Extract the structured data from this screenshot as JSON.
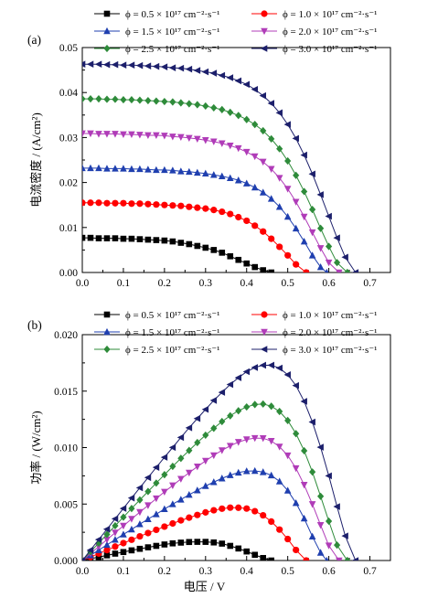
{
  "figure": {
    "panels": [
      {
        "label": "(a)",
        "ylabel": "电流密度 / (A/cm²)",
        "xlabel": "",
        "xlim": [
          0,
          0.75
        ],
        "ylim": [
          0,
          0.05
        ],
        "xticks": [
          "0.0",
          "0.1",
          "0.2",
          "0.3",
          "0.4",
          "0.5",
          "0.6",
          "0.7"
        ],
        "yticks": [
          "0.00",
          "0.01",
          "0.02",
          "0.03",
          "0.04",
          "0.05"
        ]
      },
      {
        "label": "(b)",
        "ylabel": "功率 / (W/cm²)",
        "xlabel": "电压 / V",
        "xlim": [
          0,
          0.75
        ],
        "ylim": [
          0,
          0.02
        ],
        "xticks": [
          "0.0",
          "0.1",
          "0.2",
          "0.3",
          "0.4",
          "0.5",
          "0.6",
          "0.7"
        ],
        "yticks": [
          "0.000",
          "0.005",
          "0.010",
          "0.015",
          "0.020"
        ]
      }
    ],
    "legend_labels": [
      "ϕ = 0.5 × 10¹⁷ cm⁻²·s⁻¹",
      "ϕ = 1.0 × 10¹⁷ cm⁻²·s⁻¹",
      "ϕ = 1.5 × 10¹⁷ cm⁻²·s⁻¹",
      "ϕ = 2.0 × 10¹⁷ cm⁻²·s⁻¹",
      "ϕ = 2.5 × 10¹⁷ cm⁻²·s⁻¹",
      "ϕ = 3.0 × 10¹⁷ cm⁻²·s⁻¹"
    ]
  },
  "chart_data": [
    {
      "type": "line",
      "title": "",
      "xlabel": "",
      "ylabel": "电流密度 / (A/cm²)",
      "xlim": [
        0,
        0.75
      ],
      "ylim": [
        0,
        0.05
      ],
      "legend_position": "top",
      "series": [
        {
          "name": "ϕ = 0.5 × 10¹⁷ cm⁻²·s⁻¹",
          "color": "#000000",
          "marker": "square",
          "jsc": 0.0077,
          "voc": 0.46,
          "x": [
            0,
            0.02,
            0.04,
            0.06,
            0.08,
            0.1,
            0.12,
            0.14,
            0.16,
            0.18,
            0.2,
            0.22,
            0.24,
            0.26,
            0.28,
            0.3,
            0.32,
            0.34,
            0.36,
            0.38,
            0.4,
            0.42,
            0.44,
            0.46
          ],
          "y": [
            0.0077,
            0.0077,
            0.0076,
            0.0076,
            0.0076,
            0.0075,
            0.0075,
            0.0074,
            0.0073,
            0.0072,
            0.0071,
            0.0069,
            0.0066,
            0.0063,
            0.0059,
            0.0055,
            0.005,
            0.0044,
            0.0036,
            0.0028,
            0.002,
            0.0012,
            0.0005,
            0.0
          ]
        },
        {
          "name": "ϕ = 1.0 × 10¹⁷ cm⁻²·s⁻¹",
          "color": "#ff0000",
          "marker": "circle",
          "jsc": 0.0155,
          "voc": 0.545,
          "x": [
            0,
            0.02,
            0.04,
            0.06,
            0.08,
            0.1,
            0.12,
            0.14,
            0.16,
            0.18,
            0.2,
            0.22,
            0.24,
            0.26,
            0.28,
            0.3,
            0.32,
            0.34,
            0.36,
            0.38,
            0.4,
            0.42,
            0.44,
            0.46,
            0.48,
            0.5,
            0.52,
            0.545
          ],
          "y": [
            0.0155,
            0.0155,
            0.0155,
            0.0154,
            0.0154,
            0.0154,
            0.0153,
            0.0153,
            0.0152,
            0.0151,
            0.015,
            0.0149,
            0.0148,
            0.0146,
            0.0144,
            0.0142,
            0.0139,
            0.0135,
            0.013,
            0.0123,
            0.0115,
            0.0104,
            0.0091,
            0.0075,
            0.0057,
            0.0038,
            0.0018,
            0.0
          ]
        },
        {
          "name": "ϕ = 1.5 × 10¹⁷ cm⁻²·s⁻¹",
          "color": "#1f3faf",
          "marker": "triangle-up",
          "jsc": 0.0232,
          "voc": 0.595,
          "x": [
            0,
            0.02,
            0.04,
            0.06,
            0.08,
            0.1,
            0.12,
            0.14,
            0.16,
            0.18,
            0.2,
            0.22,
            0.24,
            0.26,
            0.28,
            0.3,
            0.32,
            0.34,
            0.36,
            0.38,
            0.4,
            0.42,
            0.44,
            0.46,
            0.48,
            0.5,
            0.52,
            0.54,
            0.56,
            0.58,
            0.595
          ],
          "y": [
            0.0232,
            0.0232,
            0.0232,
            0.0231,
            0.0231,
            0.0231,
            0.023,
            0.023,
            0.0229,
            0.0228,
            0.0228,
            0.0227,
            0.0225,
            0.0224,
            0.0222,
            0.022,
            0.0217,
            0.0214,
            0.021,
            0.0205,
            0.0198,
            0.0189,
            0.0178,
            0.0164,
            0.0146,
            0.0124,
            0.0098,
            0.0069,
            0.0038,
            0.0012,
            0.0
          ]
        },
        {
          "name": "ϕ = 2.0 × 10¹⁷ cm⁻²·s⁻¹",
          "color": "#b03cb8",
          "marker": "triangle-down",
          "jsc": 0.0309,
          "voc": 0.625,
          "x": [
            0,
            0.02,
            0.04,
            0.06,
            0.08,
            0.1,
            0.12,
            0.14,
            0.16,
            0.18,
            0.2,
            0.22,
            0.24,
            0.26,
            0.28,
            0.3,
            0.32,
            0.34,
            0.36,
            0.38,
            0.4,
            0.42,
            0.44,
            0.46,
            0.48,
            0.5,
            0.52,
            0.54,
            0.56,
            0.58,
            0.6,
            0.625
          ],
          "y": [
            0.0309,
            0.0309,
            0.0308,
            0.0308,
            0.0308,
            0.0307,
            0.0307,
            0.0306,
            0.0305,
            0.0305,
            0.0304,
            0.0302,
            0.0301,
            0.0299,
            0.0297,
            0.0294,
            0.0291,
            0.0287,
            0.0282,
            0.0276,
            0.0268,
            0.0258,
            0.0246,
            0.023,
            0.021,
            0.0186,
            0.0157,
            0.0124,
            0.0089,
            0.0054,
            0.0022,
            0.0
          ]
        },
        {
          "name": "ϕ = 2.5 × 10¹⁷ cm⁻²·s⁻¹",
          "color": "#2e8b3a",
          "marker": "diamond",
          "jsc": 0.0386,
          "voc": 0.645,
          "x": [
            0,
            0.02,
            0.04,
            0.06,
            0.08,
            0.1,
            0.12,
            0.14,
            0.16,
            0.18,
            0.2,
            0.22,
            0.24,
            0.26,
            0.28,
            0.3,
            0.32,
            0.34,
            0.36,
            0.38,
            0.4,
            0.42,
            0.44,
            0.46,
            0.48,
            0.5,
            0.52,
            0.54,
            0.56,
            0.58,
            0.6,
            0.62,
            0.645
          ],
          "y": [
            0.0386,
            0.0386,
            0.0386,
            0.0385,
            0.0385,
            0.0384,
            0.0384,
            0.0383,
            0.0382,
            0.0381,
            0.038,
            0.0379,
            0.0377,
            0.0375,
            0.0373,
            0.037,
            0.0366,
            0.0362,
            0.0356,
            0.0349,
            0.034,
            0.0329,
            0.0315,
            0.0297,
            0.0275,
            0.0248,
            0.0216,
            0.018,
            0.014,
            0.0098,
            0.0058,
            0.0022,
            0.0
          ]
        },
        {
          "name": "ϕ = 3.0 × 10¹⁷ cm⁻²·s⁻¹",
          "color": "#1c1f6b",
          "marker": "triangle-left",
          "jsc": 0.0463,
          "voc": 0.665,
          "x": [
            0,
            0.02,
            0.04,
            0.06,
            0.08,
            0.1,
            0.12,
            0.14,
            0.16,
            0.18,
            0.2,
            0.22,
            0.24,
            0.26,
            0.28,
            0.3,
            0.32,
            0.34,
            0.36,
            0.38,
            0.4,
            0.42,
            0.44,
            0.46,
            0.48,
            0.5,
            0.52,
            0.54,
            0.56,
            0.58,
            0.6,
            0.62,
            0.64,
            0.665
          ],
          "y": [
            0.0463,
            0.0463,
            0.0463,
            0.0462,
            0.0462,
            0.0461,
            0.0461,
            0.046,
            0.0459,
            0.0458,
            0.0457,
            0.0455,
            0.0454,
            0.0452,
            0.0449,
            0.0446,
            0.0443,
            0.0438,
            0.0433,
            0.0426,
            0.0418,
            0.0407,
            0.0393,
            0.0376,
            0.0355,
            0.0329,
            0.0298,
            0.0261,
            0.0219,
            0.0173,
            0.0125,
            0.0077,
            0.0034,
            0.0
          ]
        }
      ]
    },
    {
      "type": "line",
      "title": "",
      "xlabel": "电压 / V",
      "ylabel": "功率 / (W/cm²)",
      "xlim": [
        0,
        0.75
      ],
      "ylim": [
        0,
        0.02
      ],
      "legend_position": "top",
      "series": [
        {
          "name": "ϕ = 0.5 × 10¹⁷ cm⁻²·s⁻¹",
          "color": "#000000",
          "marker": "square",
          "peak_power": 0.0018,
          "peak_voltage": 0.3
        },
        {
          "name": "ϕ = 1.0 × 10¹⁷ cm⁻²·s⁻¹",
          "color": "#ff0000",
          "marker": "circle",
          "peak_power": 0.0045,
          "peak_voltage": 0.37
        },
        {
          "name": "ϕ = 1.5 × 10¹⁷ cm⁻²·s⁻¹",
          "color": "#1f3faf",
          "marker": "triangle-up",
          "peak_power": 0.0075,
          "peak_voltage": 0.41
        },
        {
          "name": "ϕ = 2.0 × 10¹⁷ cm⁻²·s⁻¹",
          "color": "#b03cb8",
          "marker": "triangle-down",
          "peak_power": 0.0108,
          "peak_voltage": 0.43
        },
        {
          "name": "ϕ = 2.5 × 10¹⁷ cm⁻²·s⁻¹",
          "color": "#2e8b3a",
          "marker": "diamond",
          "peak_power": 0.0142,
          "peak_voltage": 0.46
        },
        {
          "name": "ϕ = 3.0 × 10¹⁷ cm⁻²·s⁻¹",
          "color": "#1c1f6b",
          "marker": "triangle-left",
          "peak_power": 0.0179,
          "peak_voltage": 0.47
        }
      ]
    }
  ]
}
